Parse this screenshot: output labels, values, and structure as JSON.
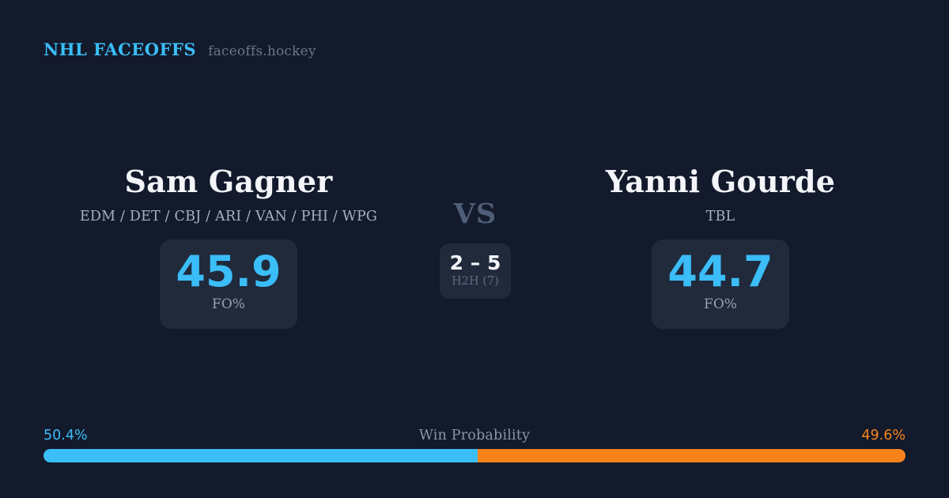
{
  "header": {
    "brand": "NHL FACEOFFS",
    "site": "faceoffs.hockey"
  },
  "players": {
    "left": {
      "name": "Sam Gagner",
      "teams": "EDM / DET / CBJ / ARI / VAN / PHI / WPG",
      "fo_value": "45.9",
      "fo_label": "FO%"
    },
    "right": {
      "name": "Yanni Gourde",
      "teams": "TBL",
      "fo_value": "44.7",
      "fo_label": "FO%"
    }
  },
  "matchup": {
    "vs_label": "VS",
    "h2h_score": "2 – 5",
    "h2h_label": "H2H (7)"
  },
  "win_probability": {
    "label": "Win Probability",
    "left_pct_text": "50.4%",
    "right_pct_text": "49.6%",
    "left_value": 50.4,
    "right_value": 49.6
  },
  "colors": {
    "background": "#121a2b",
    "card": "#202a3b",
    "accent_blue": "#3bbdf8",
    "accent_orange": "#f8821a",
    "text_bright": "#f3f5f9",
    "text_teams": "#a6b0c3",
    "text_vs": "#4f5e77",
    "text_h2h_label": "#5c6a82",
    "text_stat_label": "#95a0b3",
    "text_wp_label": "#8b95a8",
    "text_site": "#6b7585"
  }
}
